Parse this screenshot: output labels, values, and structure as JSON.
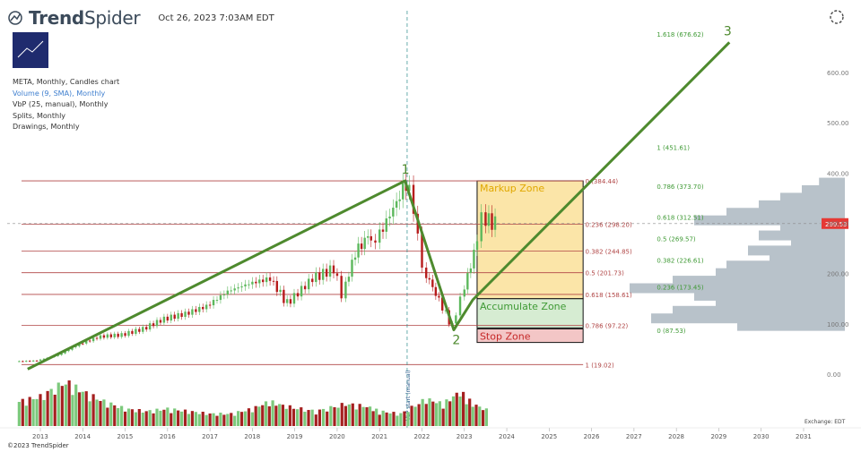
{
  "header": {
    "logo_text_bold": "Trend",
    "logo_text_light": "Spider",
    "timestamp": "Oct 26, 2023 7:03AM EDT"
  },
  "info_lines": [
    "META, Monthly, Candles chart",
    "Volume (9, SMA), Monthly",
    "VbP (25, manual), Monthly",
    "Splits, Monthly",
    "Drawings, Monthly"
  ],
  "footer": {
    "copyright": "©2023 TrendSpider",
    "exchange": "Exchange: EDT"
  },
  "chart_data": {
    "type": "candlestick",
    "symbol": "META",
    "interval": "Monthly",
    "x_axis": {
      "ticks": [
        "2013",
        "2014",
        "2015",
        "2016",
        "2017",
        "2018",
        "2019",
        "2020",
        "2021",
        "2022",
        "2023",
        "2024",
        "2025",
        "2026",
        "2027",
        "2028",
        "2029",
        "2030",
        "2031"
      ]
    },
    "y_axis": {
      "ticks": [
        "0.00",
        "100.00",
        "200.00",
        "300.00",
        "400.00",
        "500.00",
        "600.00"
      ],
      "range": [
        -35,
        700
      ]
    },
    "last_price": "299.53",
    "price_series": [
      {
        "t": 2012.5,
        "c": 25
      },
      {
        "t": 2013.0,
        "c": 27
      },
      {
        "t": 2013.5,
        "c": 38
      },
      {
        "t": 2014.0,
        "c": 60
      },
      {
        "t": 2014.5,
        "c": 75
      },
      {
        "t": 2015.0,
        "c": 78
      },
      {
        "t": 2015.5,
        "c": 90
      },
      {
        "t": 2016.0,
        "c": 110
      },
      {
        "t": 2016.5,
        "c": 120
      },
      {
        "t": 2017.0,
        "c": 135
      },
      {
        "t": 2017.5,
        "c": 165
      },
      {
        "t": 2018.0,
        "c": 180
      },
      {
        "t": 2018.5,
        "c": 190
      },
      {
        "t": 2018.9,
        "c": 140
      },
      {
        "t": 2019.5,
        "c": 190
      },
      {
        "t": 2020.0,
        "c": 210
      },
      {
        "t": 2020.2,
        "c": 160
      },
      {
        "t": 2020.5,
        "c": 240
      },
      {
        "t": 2020.8,
        "c": 275
      },
      {
        "t": 2021.0,
        "c": 265
      },
      {
        "t": 2021.4,
        "c": 330
      },
      {
        "t": 2021.7,
        "c": 380
      },
      {
        "t": 2021.9,
        "c": 335
      },
      {
        "t": 2022.1,
        "c": 210
      },
      {
        "t": 2022.4,
        "c": 160
      },
      {
        "t": 2022.8,
        "c": 93
      },
      {
        "t": 2023.0,
        "c": 150
      },
      {
        "t": 2023.3,
        "c": 240
      },
      {
        "t": 2023.5,
        "c": 310
      },
      {
        "t": 2023.8,
        "c": 300
      }
    ],
    "volume_series": [
      {
        "t": 2012.5,
        "v": 0.5
      },
      {
        "t": 2013.0,
        "v": 0.6
      },
      {
        "t": 2013.6,
        "v": 0.9
      },
      {
        "t": 2014.0,
        "v": 0.7
      },
      {
        "t": 2014.5,
        "v": 0.5
      },
      {
        "t": 2015.0,
        "v": 0.35
      },
      {
        "t": 2015.5,
        "v": 0.3
      },
      {
        "t": 2016.0,
        "v": 0.35
      },
      {
        "t": 2016.5,
        "v": 0.3
      },
      {
        "t": 2017.0,
        "v": 0.25
      },
      {
        "t": 2017.5,
        "v": 0.25
      },
      {
        "t": 2018.0,
        "v": 0.35
      },
      {
        "t": 2018.4,
        "v": 0.5
      },
      {
        "t": 2018.8,
        "v": 0.4
      },
      {
        "t": 2019.5,
        "v": 0.3
      },
      {
        "t": 2020.2,
        "v": 0.45
      },
      {
        "t": 2020.7,
        "v": 0.4
      },
      {
        "t": 2021.0,
        "v": 0.3
      },
      {
        "t": 2021.5,
        "v": 0.25
      },
      {
        "t": 2022.1,
        "v": 0.55
      },
      {
        "t": 2022.5,
        "v": 0.45
      },
      {
        "t": 2022.9,
        "v": 0.7
      },
      {
        "t": 2023.2,
        "v": 0.45
      },
      {
        "t": 2023.6,
        "v": 0.3
      }
    ],
    "vbp_start": {
      "t": 2021.65,
      "label": "VbP start (manual)"
    },
    "wave_labels": [
      {
        "label": "1",
        "t": 2021.6,
        "p": 384.44
      },
      {
        "label": "2",
        "t": 2022.8,
        "p": 88
      },
      {
        "label": "3",
        "t": 2029.2,
        "p": 660
      }
    ],
    "wave_path": [
      {
        "t": 2012.7,
        "p": 10
      },
      {
        "t": 2021.6,
        "p": 384.44
      },
      {
        "t": 2022.75,
        "p": 88
      },
      {
        "t": 2023.2,
        "p": 148
      },
      {
        "t": 2029.25,
        "p": 660
      }
    ],
    "retracement_levels": [
      {
        "label": "0 (384.44)",
        "p": 384.44
      },
      {
        "label": "0.236 (298.20)",
        "p": 298.2
      },
      {
        "label": "0.382 (244.85)",
        "p": 244.85
      },
      {
        "label": "0.5 (201.73)",
        "p": 201.73
      },
      {
        "label": "0.618 (158.61)",
        "p": 158.61
      },
      {
        "label": "0.786 (97.22)",
        "p": 97.22
      },
      {
        "label": "1 (19.02)",
        "p": 19.02
      }
    ],
    "extension_levels": [
      {
        "label": "1.618 (676.62)",
        "p": 676.62
      },
      {
        "label": "1 (451.61)",
        "p": 451.61
      },
      {
        "label": "0.786 (373.70)",
        "p": 373.7
      },
      {
        "label": "0.618 (312.51)",
        "p": 312.51
      },
      {
        "label": "0.5 (269.57)",
        "p": 269.57
      },
      {
        "label": "0.382 (226.61)",
        "p": 226.61
      },
      {
        "label": "0.236 (173.45)",
        "p": 173.45
      },
      {
        "label": "0 (87.53)",
        "p": 87.53
      }
    ],
    "zones": [
      {
        "label": "Markup Zone",
        "p_top": 384.44,
        "p_bottom": 150,
        "fill": "#fbe5a8",
        "text_color": "#e0a800"
      },
      {
        "label": "Accumulate Zone",
        "p_top": 150,
        "p_bottom": 92,
        "fill": "#d6ecd2",
        "text_color": "#3f9a35"
      },
      {
        "label": "Stop Zone",
        "p_top": 90,
        "p_bottom": 63,
        "fill": "#f3c6c6",
        "text_color": "#c62828"
      }
    ],
    "volume_profile": [
      {
        "p": 380,
        "w": 0.12
      },
      {
        "p": 365,
        "w": 0.2
      },
      {
        "p": 350,
        "w": 0.3
      },
      {
        "p": 335,
        "w": 0.4
      },
      {
        "p": 320,
        "w": 0.55
      },
      {
        "p": 305,
        "w": 0.7
      },
      {
        "p": 290,
        "w": 0.3
      },
      {
        "p": 275,
        "w": 0.4
      },
      {
        "p": 260,
        "w": 0.25
      },
      {
        "p": 245,
        "w": 0.45
      },
      {
        "p": 230,
        "w": 0.35
      },
      {
        "p": 215,
        "w": 0.55
      },
      {
        "p": 200,
        "w": 0.6
      },
      {
        "p": 185,
        "w": 0.8
      },
      {
        "p": 170,
        "w": 1.0
      },
      {
        "p": 155,
        "w": 0.7
      },
      {
        "p": 140,
        "w": 0.6
      },
      {
        "p": 125,
        "w": 0.8
      },
      {
        "p": 110,
        "w": 0.9
      },
      {
        "p": 95,
        "w": 0.5
      }
    ],
    "colors": {
      "up": "#5cb85c",
      "down": "#b71c1c",
      "wave": "#4e8a2e",
      "level": "#b04545",
      "ext": "#3f9a35",
      "profile": "#b8c2ca"
    }
  }
}
